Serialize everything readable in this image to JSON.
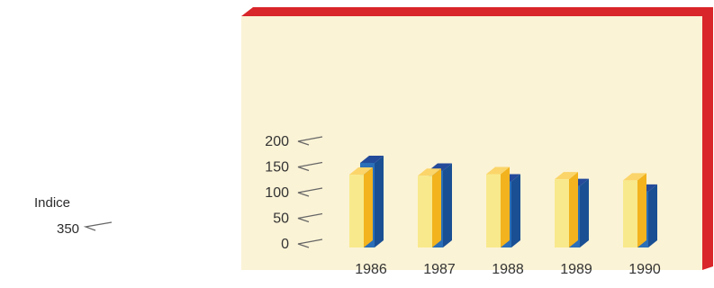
{
  "side": {
    "label": "Indice",
    "value": "350"
  },
  "colors": {
    "frame_red": "#d8262a",
    "panel": "#fbf3d6",
    "yellow_front": "#f8e98c",
    "yellow_side": "#f2b31e",
    "yellow_top": "#fbd56a",
    "blue_front": "#2a6fb8",
    "blue_side": "#1a4f93",
    "blue_top": "#244a9a"
  },
  "chart_data": {
    "type": "bar",
    "categories": [
      "1986",
      "1987",
      "1988",
      "1989",
      "1990"
    ],
    "series": [
      {
        "values": [
          135,
          133,
          136,
          126,
          124
        ]
      },
      {
        "values": [
          158,
          143,
          122,
          113,
          102
        ]
      }
    ],
    "yticks": [
      "0",
      "50",
      "100",
      "150",
      "200"
    ],
    "ylim": [
      0,
      200
    ],
    "title": "",
    "xlabel": "",
    "ylabel": "Indice"
  }
}
